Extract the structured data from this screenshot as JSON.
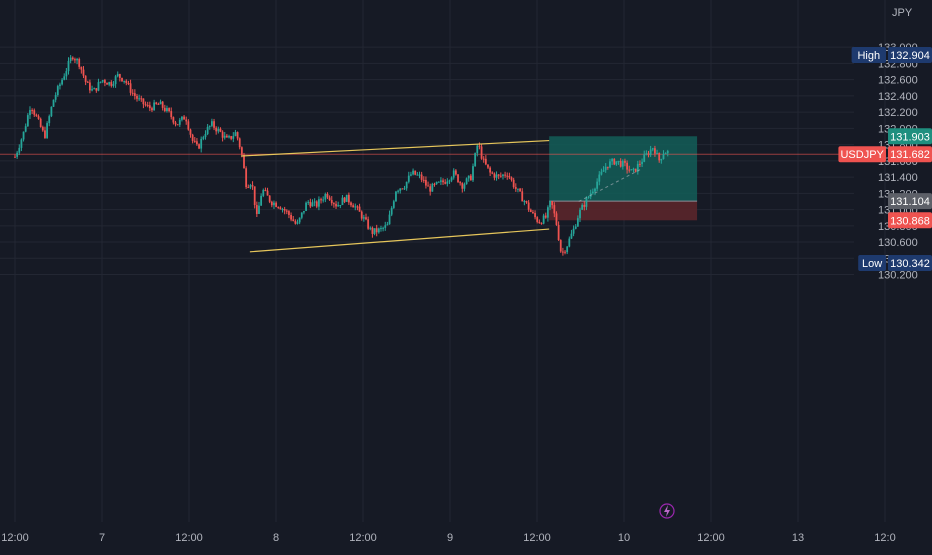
{
  "currency_label": "JPY",
  "colors": {
    "background": "#161a25",
    "grid": "#232733",
    "axis_text": "#b2b5be",
    "candle_up": "#26a69a",
    "candle_down": "#ef5350",
    "channel_line": "#e6c65b",
    "profit_zone": "#135e58",
    "loss_zone": "#5a262b",
    "price_line": "#ef5350"
  },
  "chart_data": {
    "type": "candlestick",
    "symbol": "USDJPY",
    "yaxis": {
      "range": [
        130.1,
        133.15
      ],
      "ticks": [
        "133.000",
        "132.800",
        "132.600",
        "132.400",
        "132.200",
        "132.000",
        "131.800",
        "131.600",
        "131.400",
        "131.200",
        "131.000",
        "130.800",
        "130.600",
        "130.400",
        "130.200"
      ]
    },
    "xaxis": {
      "tick_labels": [
        {
          "label": "12:00",
          "session": 0.0
        },
        {
          "label": "7",
          "session": 0.5
        },
        {
          "label": "12:00",
          "session": 1.0
        },
        {
          "label": "8",
          "session": 1.5
        },
        {
          "label": "12:00",
          "session": 2.0
        },
        {
          "label": "9",
          "session": 2.5
        },
        {
          "label": "12:00",
          "session": 3.0
        },
        {
          "label": "10",
          "session": 3.5
        },
        {
          "label": "12:00",
          "session": 4.0
        },
        {
          "label": "13",
          "session": 4.5
        },
        {
          "label": "12:0",
          "session": 5.0
        }
      ]
    },
    "price_path": [
      {
        "t": 0.0,
        "p": 131.65
      },
      {
        "t": 0.05,
        "p": 131.95
      },
      {
        "t": 0.09,
        "p": 132.3
      },
      {
        "t": 0.13,
        "p": 132.1
      },
      {
        "t": 0.17,
        "p": 131.9
      },
      {
        "t": 0.22,
        "p": 132.35
      },
      {
        "t": 0.26,
        "p": 132.55
      },
      {
        "t": 0.3,
        "p": 132.75
      },
      {
        "t": 0.33,
        "p": 132.9
      },
      {
        "t": 0.37,
        "p": 132.8
      },
      {
        "t": 0.41,
        "p": 132.55
      },
      {
        "t": 0.45,
        "p": 132.45
      },
      {
        "t": 0.5,
        "p": 132.6
      },
      {
        "t": 0.55,
        "p": 132.55
      },
      {
        "t": 0.59,
        "p": 132.65
      },
      {
        "t": 0.63,
        "p": 132.6
      },
      {
        "t": 0.67,
        "p": 132.45
      },
      {
        "t": 0.71,
        "p": 132.35
      },
      {
        "t": 0.77,
        "p": 132.25
      },
      {
        "t": 0.83,
        "p": 132.3
      },
      {
        "t": 0.88,
        "p": 132.2
      },
      {
        "t": 0.93,
        "p": 132.05
      },
      {
        "t": 0.98,
        "p": 132.15
      },
      {
        "t": 1.02,
        "p": 131.85
      },
      {
        "t": 1.05,
        "p": 131.75
      },
      {
        "t": 1.09,
        "p": 131.95
      },
      {
        "t": 1.13,
        "p": 132.05
      },
      {
        "t": 1.18,
        "p": 131.95
      },
      {
        "t": 1.22,
        "p": 131.85
      },
      {
        "t": 1.27,
        "p": 131.95
      },
      {
        "t": 1.3,
        "p": 131.72
      },
      {
        "t": 1.33,
        "p": 131.3
      },
      {
        "t": 1.36,
        "p": 131.35
      },
      {
        "t": 1.39,
        "p": 130.9
      },
      {
        "t": 1.42,
        "p": 131.25
      },
      {
        "t": 1.47,
        "p": 131.1
      },
      {
        "t": 1.52,
        "p": 131.05
      },
      {
        "t": 1.57,
        "p": 130.95
      },
      {
        "t": 1.62,
        "p": 130.8
      },
      {
        "t": 1.68,
        "p": 131.1
      },
      {
        "t": 1.73,
        "p": 131.05
      },
      {
        "t": 1.79,
        "p": 131.2
      },
      {
        "t": 1.85,
        "p": 131.05
      },
      {
        "t": 1.9,
        "p": 131.15
      },
      {
        "t": 1.95,
        "p": 131.05
      },
      {
        "t": 2.0,
        "p": 130.9
      },
      {
        "t": 2.05,
        "p": 130.72
      },
      {
        "t": 2.1,
        "p": 130.75
      },
      {
        "t": 2.14,
        "p": 130.8
      },
      {
        "t": 2.19,
        "p": 131.25
      },
      {
        "t": 2.24,
        "p": 131.3
      },
      {
        "t": 2.28,
        "p": 131.45
      },
      {
        "t": 2.33,
        "p": 131.4
      },
      {
        "t": 2.38,
        "p": 131.25
      },
      {
        "t": 2.42,
        "p": 131.3
      },
      {
        "t": 2.47,
        "p": 131.35
      },
      {
        "t": 2.52,
        "p": 131.45
      },
      {
        "t": 2.57,
        "p": 131.3
      },
      {
        "t": 2.62,
        "p": 131.4
      },
      {
        "t": 2.66,
        "p": 131.82
      },
      {
        "t": 2.69,
        "p": 131.6
      },
      {
        "t": 2.73,
        "p": 131.45
      },
      {
        "t": 2.78,
        "p": 131.4
      },
      {
        "t": 2.83,
        "p": 131.45
      },
      {
        "t": 2.88,
        "p": 131.25
      },
      {
        "t": 2.93,
        "p": 131.1
      },
      {
        "t": 2.97,
        "p": 130.95
      },
      {
        "t": 3.01,
        "p": 130.85
      },
      {
        "t": 3.05,
        "p": 130.9
      },
      {
        "t": 3.08,
        "p": 131.1
      },
      {
        "t": 3.11,
        "p": 130.85
      },
      {
        "t": 3.14,
        "p": 130.45
      },
      {
        "t": 3.17,
        "p": 130.55
      },
      {
        "t": 3.21,
        "p": 130.75
      },
      {
        "t": 3.24,
        "p": 130.95
      },
      {
        "t": 3.28,
        "p": 131.1
      },
      {
        "t": 3.32,
        "p": 131.25
      },
      {
        "t": 3.36,
        "p": 131.4
      },
      {
        "t": 3.4,
        "p": 131.55
      },
      {
        "t": 3.45,
        "p": 131.6
      },
      {
        "t": 3.5,
        "p": 131.55
      },
      {
        "t": 3.55,
        "p": 131.45
      },
      {
        "t": 3.6,
        "p": 131.6
      },
      {
        "t": 3.64,
        "p": 131.7
      },
      {
        "t": 3.67,
        "p": 131.78
      },
      {
        "t": 3.7,
        "p": 131.6
      },
      {
        "t": 3.73,
        "p": 131.72
      },
      {
        "t": 3.76,
        "p": 131.7
      }
    ],
    "channel": {
      "upper": {
        "start": {
          "t": 1.3,
          "p": 131.66
        },
        "end": {
          "t": 3.07,
          "p": 131.85
        }
      },
      "lower": {
        "start": {
          "t": 1.35,
          "p": 130.48
        },
        "end": {
          "t": 3.07,
          "p": 130.76
        }
      }
    },
    "position": {
      "start_t": 3.07,
      "end_t": 3.92,
      "entry": 131.104,
      "target": 131.903,
      "stop": 130.868
    },
    "current_price": 131.682,
    "labels": [
      {
        "name": "high",
        "prefix": "High",
        "value": "132.904",
        "price": 132.904
      },
      {
        "name": "target",
        "prefix": "",
        "value": "131.903",
        "price": 131.903
      },
      {
        "name": "current",
        "prefix": "USDJPY",
        "value": "131.682",
        "price": 131.682
      },
      {
        "name": "entry",
        "prefix": "",
        "value": "131.104",
        "price": 131.104
      },
      {
        "name": "stop",
        "prefix": "",
        "value": "130.868",
        "price": 130.868
      },
      {
        "name": "low",
        "prefix": "Low",
        "value": "130.342",
        "price": 130.342
      }
    ]
  }
}
